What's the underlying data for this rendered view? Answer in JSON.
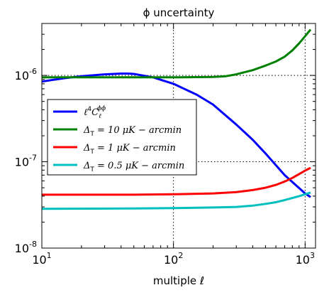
{
  "chart_data": {
    "type": "line",
    "title": "ϕ uncertainty",
    "xlabel": "multiple ℓ",
    "ylabel": "",
    "xscale": "log",
    "yscale": "log",
    "xlim": [
      10,
      1200
    ],
    "ylim": [
      1e-08,
      4e-06
    ],
    "x_tick_values": [
      10,
      100,
      1000
    ],
    "x_tick_labels": [
      {
        "base": "10",
        "exp": "1"
      },
      {
        "base": "10",
        "exp": "2"
      },
      {
        "base": "10",
        "exp": "3"
      }
    ],
    "y_tick_values": [
      1e-08,
      1e-07,
      1e-06
    ],
    "y_tick_labels": [
      {
        "base": "10",
        "exp": "-8"
      },
      {
        "base": "10",
        "exp": "-7"
      },
      {
        "base": "10",
        "exp": "-6"
      }
    ],
    "grid": true,
    "legend_position": "center-left",
    "series": [
      {
        "name": "ℓ⁴Cℓᵠᵠ",
        "label_parts": {
          "main": "ℓ",
          "sup": "4",
          "main2": "C",
          "sub": "ℓ",
          "sup2": "ϕϕ"
        },
        "color": "#0000ff",
        "x": [
          10,
          15,
          20,
          30,
          40,
          45,
          50,
          70,
          100,
          150,
          200,
          300,
          400,
          500,
          700,
          1000,
          1100
        ],
        "y": [
          8.5e-07,
          9.3e-07,
          9.8e-07,
          1.03e-06,
          1.05e-06,
          1.05e-06,
          1.04e-06,
          9.5e-07,
          8e-07,
          6e-07,
          4.6e-07,
          2.7e-07,
          1.8e-07,
          1.25e-07,
          7e-08,
          4.3e-08,
          3.9e-08
        ]
      },
      {
        "name": "ΔT = 10 μK − arcmin",
        "label_parts": {
          "sym": "Δ",
          "sub": "T",
          "value": "= 10 μK − arcmin"
        },
        "color": "#008000",
        "x": [
          10,
          50,
          100,
          200,
          250,
          300,
          400,
          500,
          600,
          700,
          800,
          900,
          1000,
          1100
        ],
        "y": [
          9.5e-07,
          9.5e-07,
          9.5e-07,
          9.6e-07,
          9.8e-07,
          1.03e-06,
          1.15e-06,
          1.3e-06,
          1.45e-06,
          1.65e-06,
          1.95e-06,
          2.35e-06,
          2.85e-06,
          3.4e-06
        ]
      },
      {
        "name": "ΔT = 1 μK − arcmin",
        "label_parts": {
          "sym": "Δ",
          "sub": "T",
          "value": "= 1 μK − arcmin"
        },
        "color": "#ff0000",
        "x": [
          10,
          50,
          100,
          200,
          300,
          400,
          500,
          600,
          700,
          800,
          900,
          1000,
          1100
        ],
        "y": [
          4.15e-08,
          4.15e-08,
          4.2e-08,
          4.3e-08,
          4.45e-08,
          4.7e-08,
          5e-08,
          5.4e-08,
          5.9e-08,
          6.5e-08,
          7.2e-08,
          7.9e-08,
          8.5e-08
        ]
      },
      {
        "name": "ΔT = 0.5 μK − arcmin",
        "label_parts": {
          "sym": "Δ",
          "sub": "T",
          "value": "= 0.5 μK − arcmin"
        },
        "color": "#00bfbf",
        "x": [
          10,
          50,
          100,
          200,
          300,
          400,
          500,
          600,
          700,
          800,
          900,
          1000,
          1100
        ],
        "y": [
          2.85e-08,
          2.88e-08,
          2.9e-08,
          2.95e-08,
          3e-08,
          3.1e-08,
          3.25e-08,
          3.4e-08,
          3.6e-08,
          3.8e-08,
          4e-08,
          4.2e-08,
          4.4e-08
        ]
      }
    ]
  }
}
